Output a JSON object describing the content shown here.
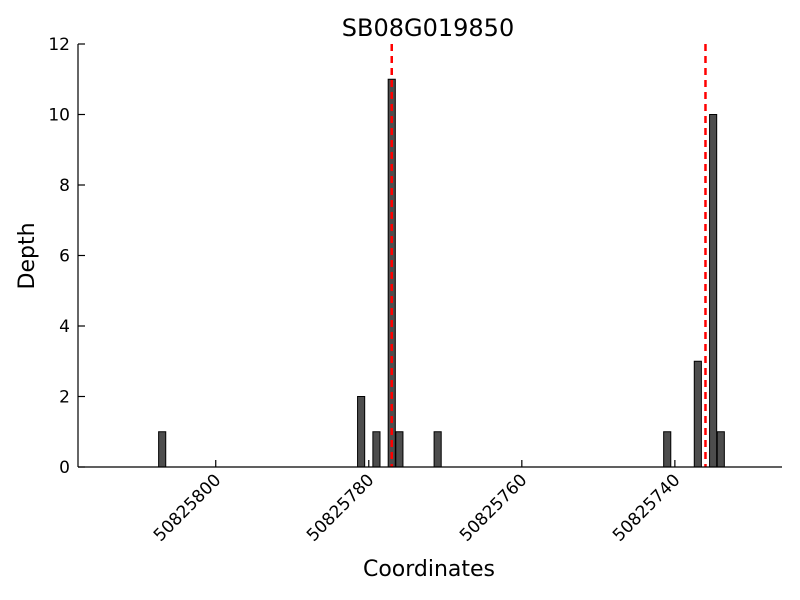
{
  "chart_data": {
    "type": "bar",
    "title": "SB08G019850",
    "xlabel": "Coordinates",
    "ylabel": "Depth",
    "xlim": [
      50825818,
      50825726
    ],
    "x_reversed": true,
    "ylim": [
      0,
      12
    ],
    "yticks": [
      0,
      2,
      4,
      6,
      8,
      10,
      12
    ],
    "xticks": [
      50825800,
      50825780,
      50825760,
      50825740
    ],
    "grid": false,
    "bar_color": "#4d4d4d",
    "bar_edge_color": "#000000",
    "marker_color": "#ff0000",
    "series": [
      {
        "x": [
          50825807,
          50825781,
          50825779,
          50825777,
          50825776,
          50825771,
          50825741,
          50825737,
          50825735,
          50825734
        ],
        "values": [
          1,
          2,
          1,
          11,
          1,
          1,
          1,
          3,
          10,
          1
        ]
      }
    ],
    "markers": [
      50825777,
      50825736
    ]
  }
}
